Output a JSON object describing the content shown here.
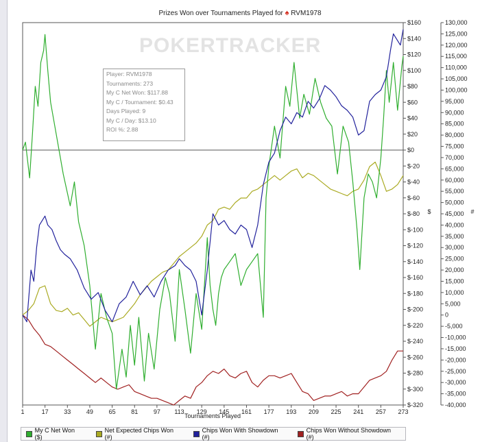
{
  "window": {
    "title": "Prizes Won over Tournaments Played for",
    "player": "RVM1978",
    "suit_icon": "♠"
  },
  "watermark": {
    "text": "POKERTRACKER"
  },
  "info_box": {
    "lines": [
      "Player: RVM1978",
      "Tournaments: 273",
      "My C Net Won: $117.88",
      "My C / Tournament: $0.43",
      "Days Played: 9",
      "My C / Day: $13.10",
      "ROI %: 2.88"
    ]
  },
  "chart_data": {
    "type": "line",
    "title": "Prizes Won over Tournaments Played for RVM1978",
    "xlabel": "Tournaments Played",
    "ylabel_left": "$",
    "ylabel_right": "#",
    "x_ticks": [
      1,
      17,
      33,
      49,
      65,
      81,
      97,
      113,
      129,
      145,
      161,
      177,
      193,
      209,
      225,
      241,
      257,
      273
    ],
    "xlim": [
      1,
      273
    ],
    "ylim_left": [
      -320,
      160
    ],
    "ylim_right": [
      -40000,
      130000
    ],
    "y_ticks_left": [
      "$160",
      "$140",
      "$120",
      "$100",
      "$80",
      "$60",
      "$40",
      "$20",
      "$0",
      "$-20",
      "$-40",
      "$-60",
      "$-80",
      "$-100",
      "$-120",
      "$-140",
      "$-160",
      "$-180",
      "$-200",
      "$-220",
      "$-240",
      "$-260",
      "$-280",
      "$-300",
      "$-320"
    ],
    "y_ticks_right": [
      "130,000",
      "125,000",
      "120,000",
      "115,000",
      "110,000",
      "105,000",
      "100,000",
      "95,000",
      "90,000",
      "85,000",
      "80,000",
      "75,000",
      "70,000",
      "65,000",
      "60,000",
      "55,000",
      "50,000",
      "45,000",
      "40,000",
      "35,000",
      "30,000",
      "25,000",
      "20,000",
      "15,000",
      "10,000",
      "5,000",
      "0",
      "-5,000",
      "-10,000",
      "-15,000",
      "-20,000",
      "-25,000",
      "-30,000",
      "-35,000",
      "-40,000"
    ],
    "series": [
      {
        "name": "My C Net Won ($)",
        "axis": "left",
        "color": "#2fae2f",
        "x": [
          1,
          3,
          6,
          8,
          10,
          12,
          14,
          16,
          17,
          19,
          21,
          25,
          30,
          35,
          38,
          41,
          45,
          49,
          53,
          57,
          61,
          65,
          68,
          72,
          75,
          78,
          81,
          84,
          88,
          91,
          95,
          99,
          103,
          106,
          110,
          113,
          117,
          121,
          125,
          129,
          133,
          135,
          137,
          139,
          141,
          143,
          145,
          149,
          153,
          157,
          161,
          165,
          169,
          173,
          175,
          177,
          181,
          185,
          189,
          192,
          195,
          199,
          202,
          206,
          210,
          214,
          218,
          222,
          226,
          230,
          234,
          237,
          240,
          242,
          245,
          248,
          251,
          254,
          257,
          259,
          261,
          263,
          266,
          269,
          272,
          273
        ],
        "values": [
          0,
          10,
          -35,
          20,
          80,
          55,
          110,
          125,
          145,
          100,
          60,
          20,
          -30,
          -70,
          -40,
          -90,
          -120,
          -170,
          -250,
          -180,
          -210,
          -230,
          -300,
          -250,
          -285,
          -220,
          -270,
          -210,
          -290,
          -230,
          -275,
          -200,
          -160,
          -180,
          -240,
          -150,
          -200,
          -255,
          -180,
          -225,
          -110,
          -170,
          -200,
          -220,
          -180,
          -160,
          -150,
          -140,
          -130,
          -170,
          -150,
          -140,
          -130,
          -210,
          -60,
          -20,
          30,
          -10,
          80,
          55,
          110,
          40,
          70,
          45,
          90,
          60,
          40,
          30,
          -30,
          30,
          10,
          -40,
          -100,
          -150,
          -60,
          -30,
          -40,
          -60,
          -10,
          40,
          100,
          60,
          110,
          50,
          105,
          118
        ]
      },
      {
        "name": "Net Expected Chips Won (#)",
        "axis": "right",
        "color": "#aaaa22",
        "x": [
          1,
          5,
          9,
          13,
          17,
          21,
          25,
          29,
          33,
          37,
          41,
          45,
          49,
          53,
          57,
          61,
          65,
          69,
          73,
          77,
          81,
          85,
          89,
          93,
          97,
          101,
          105,
          109,
          113,
          117,
          121,
          125,
          129,
          133,
          137,
          141,
          145,
          149,
          153,
          157,
          161,
          165,
          169,
          173,
          177,
          181,
          185,
          189,
          193,
          197,
          201,
          205,
          209,
          213,
          217,
          221,
          225,
          229,
          233,
          237,
          241,
          245,
          249,
          253,
          257,
          261,
          265,
          269,
          273
        ],
        "values": [
          0,
          2000,
          5000,
          12000,
          13000,
          5000,
          2000,
          1500,
          3000,
          0,
          1000,
          -2000,
          -5000,
          -3000,
          -1000,
          -2000,
          -3000,
          -2000,
          -1000,
          2000,
          5000,
          9000,
          12000,
          15000,
          17000,
          19000,
          20000,
          23000,
          26000,
          28000,
          30000,
          32000,
          35000,
          40000,
          42000,
          47000,
          48000,
          47000,
          50000,
          52000,
          52000,
          55000,
          56000,
          58000,
          60000,
          62000,
          60000,
          62000,
          64000,
          65000,
          61000,
          63000,
          62000,
          60000,
          58000,
          56000,
          55000,
          54000,
          53000,
          55000,
          56000,
          60000,
          66000,
          68000,
          62000,
          55000,
          56000,
          58000,
          62000
        ]
      },
      {
        "name": "Chips Won With Showdown (#)",
        "axis": "right",
        "color": "#22229c",
        "x": [
          1,
          4,
          7,
          9,
          11,
          13,
          17,
          19,
          22,
          25,
          28,
          31,
          35,
          40,
          45,
          50,
          55,
          60,
          65,
          70,
          75,
          80,
          85,
          90,
          95,
          100,
          105,
          110,
          113,
          117,
          121,
          125,
          129,
          133,
          137,
          141,
          145,
          149,
          153,
          157,
          161,
          165,
          169,
          173,
          177,
          181,
          185,
          189,
          193,
          197,
          201,
          205,
          209,
          213,
          217,
          221,
          225,
          229,
          233,
          237,
          241,
          245,
          249,
          253,
          257,
          261,
          264,
          266,
          269,
          271,
          273
        ],
        "values": [
          0,
          -3000,
          20000,
          15000,
          30000,
          40000,
          44000,
          40000,
          38000,
          33000,
          29000,
          27000,
          25000,
          20000,
          12000,
          7000,
          10000,
          2000,
          -3000,
          5000,
          8000,
          15000,
          9000,
          13000,
          8000,
          15000,
          20000,
          22000,
          25000,
          22000,
          20000,
          15000,
          0,
          20000,
          45000,
          40000,
          42000,
          38000,
          36000,
          40000,
          38000,
          30000,
          40000,
          58000,
          68000,
          72000,
          82000,
          88000,
          85000,
          90000,
          88000,
          95000,
          92000,
          96000,
          102000,
          100000,
          97000,
          93000,
          91000,
          88000,
          80000,
          82000,
          95000,
          98000,
          100000,
          106000,
          118000,
          125000,
          122000,
          120000,
          127000
        ]
      },
      {
        "name": "Chips Won Without Showdown (#)",
        "axis": "right",
        "color": "#a02020",
        "x": [
          1,
          5,
          9,
          13,
          17,
          21,
          25,
          29,
          33,
          37,
          41,
          45,
          49,
          53,
          57,
          61,
          65,
          69,
          73,
          77,
          81,
          85,
          89,
          93,
          97,
          101,
          105,
          109,
          113,
          117,
          121,
          125,
          129,
          133,
          137,
          141,
          145,
          149,
          153,
          157,
          161,
          165,
          169,
          173,
          177,
          181,
          185,
          189,
          193,
          197,
          201,
          205,
          209,
          213,
          217,
          221,
          225,
          229,
          233,
          237,
          241,
          245,
          249,
          253,
          257,
          261,
          265,
          269,
          273
        ],
        "values": [
          0,
          -2000,
          -6000,
          -9000,
          -13000,
          -14000,
          -16000,
          -18000,
          -20000,
          -22000,
          -24000,
          -26000,
          -28000,
          -30000,
          -28000,
          -30000,
          -32000,
          -33000,
          -32000,
          -31000,
          -34000,
          -35000,
          -36000,
          -37000,
          -37000,
          -38000,
          -39000,
          -40000,
          -38000,
          -36000,
          -37000,
          -32000,
          -30000,
          -27000,
          -25000,
          -26000,
          -24000,
          -27000,
          -28000,
          -26000,
          -25000,
          -30000,
          -32000,
          -29000,
          -27000,
          -27000,
          -28000,
          -27000,
          -26000,
          -30000,
          -34000,
          -35000,
          -38000,
          -37000,
          -36000,
          -36000,
          -35000,
          -34000,
          -36000,
          -35000,
          -35000,
          -32000,
          -29000,
          -28000,
          -27000,
          -25000,
          -20000,
          -16000,
          -16000
        ]
      }
    ]
  }
}
